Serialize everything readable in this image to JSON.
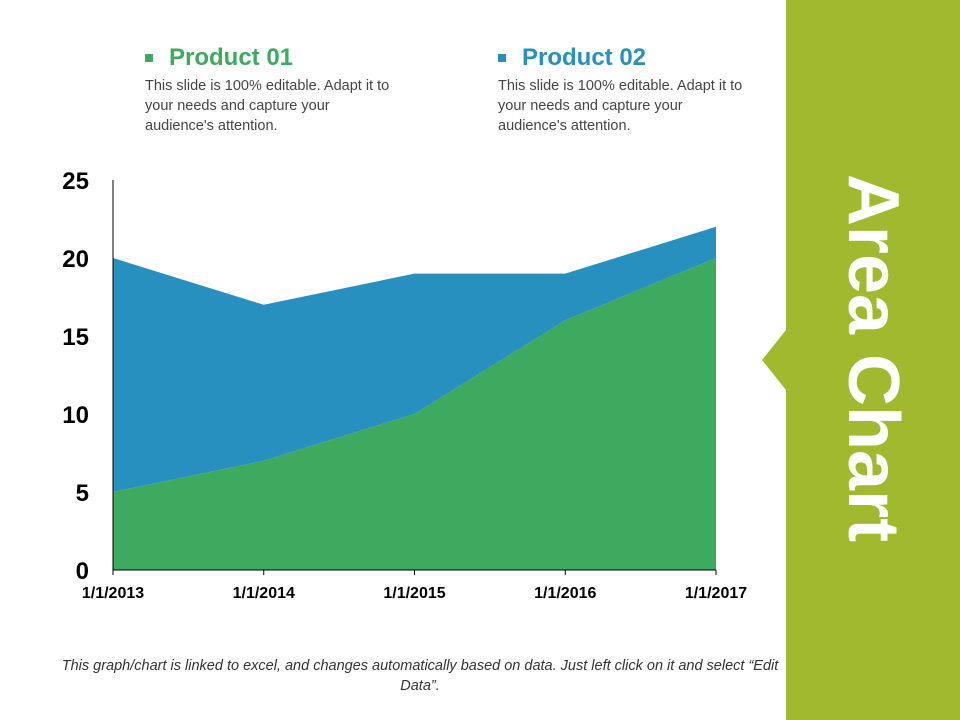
{
  "colors": {
    "product01": "#3daa5f",
    "product02": "#2890be",
    "panel": "#a0b92e",
    "axis": "#000000"
  },
  "legend": [
    {
      "title": "Product 01",
      "description": "This slide is 100% editable. Adapt it to your needs and capture your audience's attention."
    },
    {
      "title": "Product 02",
      "description": "This slide is 100% editable. Adapt it to your needs and capture your audience's attention."
    }
  ],
  "side_title": "Area Chart",
  "footnote": "This graph/chart is linked to excel, and changes automatically based on data. Just left click on it and select “Edit Data”.",
  "chart_data": {
    "type": "area",
    "stacked": true,
    "title": "",
    "xlabel": "",
    "ylabel": "",
    "categories": [
      "1/1/2013",
      "1/1/2014",
      "1/1/2015",
      "1/1/2016",
      "1/1/2017"
    ],
    "series": [
      {
        "name": "Product 01",
        "values": [
          5,
          7,
          10,
          16,
          20
        ]
      },
      {
        "name": "Product 02",
        "values": [
          15,
          10,
          9,
          3,
          2
        ]
      }
    ],
    "ylim": [
      0,
      25
    ],
    "yticks": [
      0,
      5,
      10,
      15,
      20,
      25
    ],
    "grid": false,
    "legend_position": "top"
  }
}
